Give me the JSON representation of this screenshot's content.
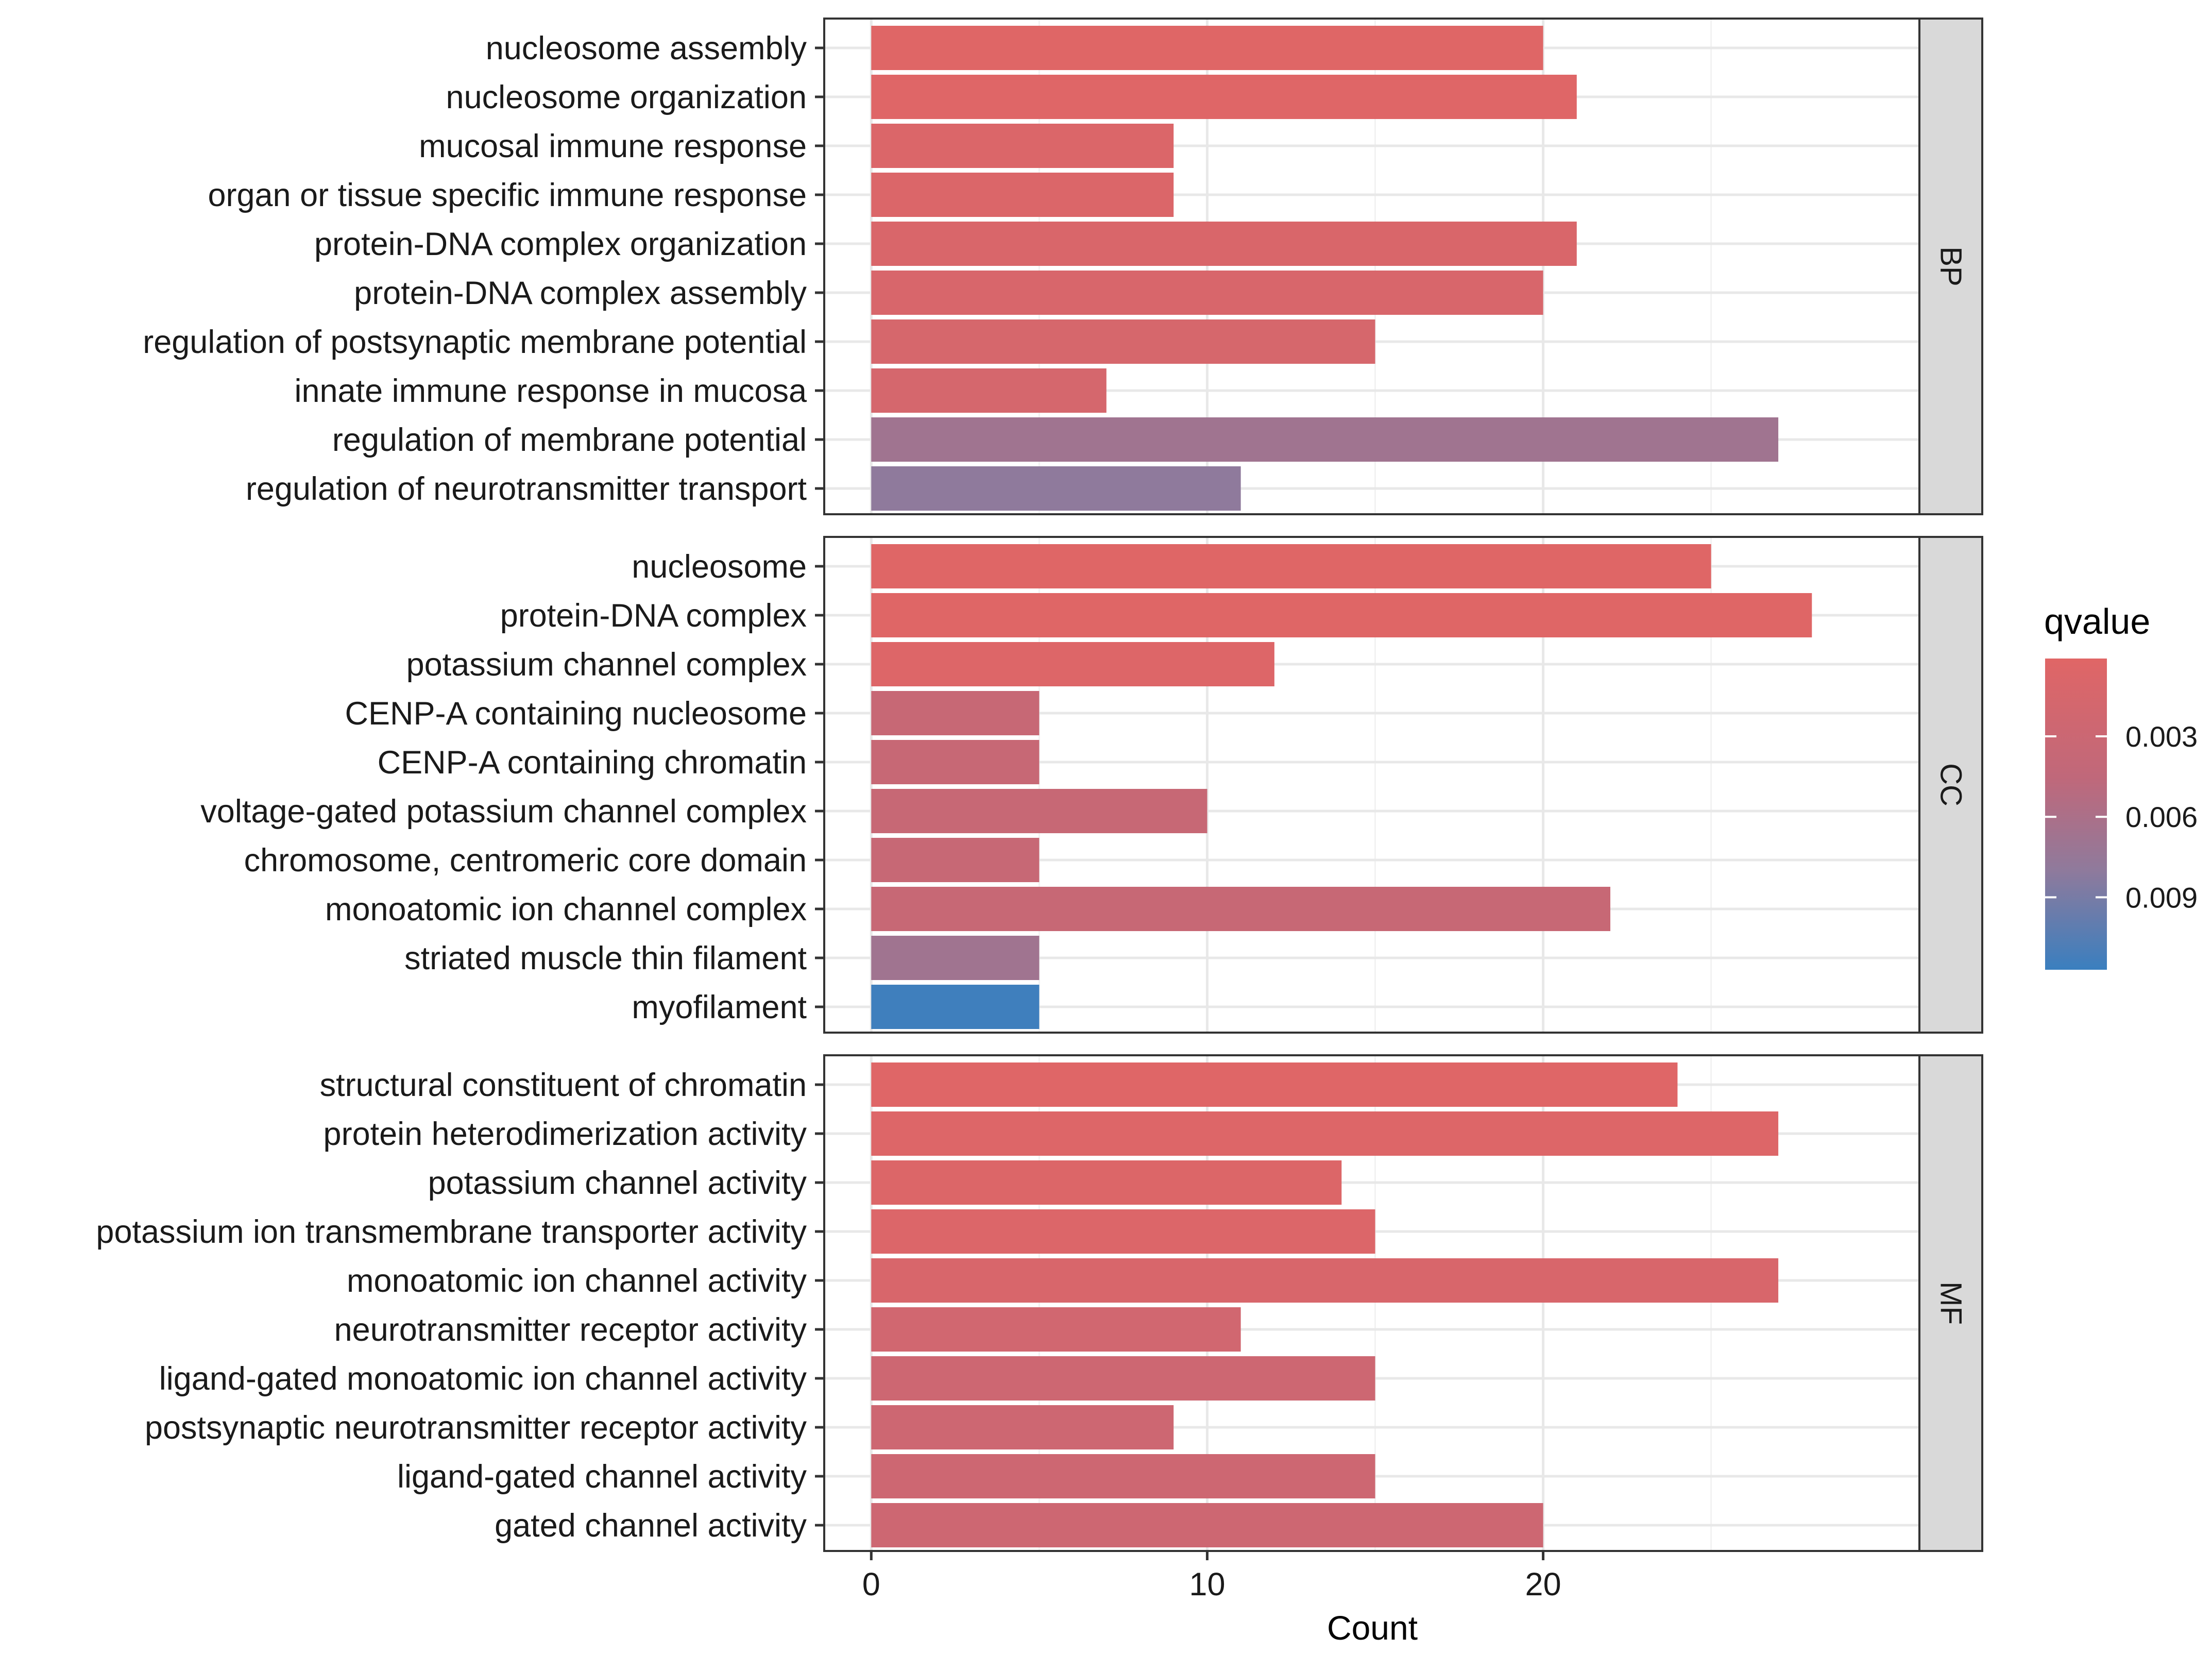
{
  "chart_data": {
    "type": "bar",
    "orientation": "horizontal",
    "xlabel": "Count",
    "xlim": [
      -1.4,
      31.2
    ],
    "xticks": [
      0,
      10,
      20
    ],
    "grid": true,
    "legend": {
      "title": "qvalue",
      "ticks": [
        0.003,
        0.006,
        0.009
      ],
      "tick_labels": [
        "0.003",
        "0.006",
        "0.009"
      ],
      "min": 0.0001,
      "max": 0.0117,
      "low_color": "#e06666",
      "high_color": "#3a7fbf",
      "position": "right"
    },
    "facets": [
      {
        "name": "BP",
        "categories": [
          "nucleosome assembly",
          "nucleosome organization",
          "mucosal immune response",
          "organ or tissue specific immune response",
          "protein-DNA complex organization",
          "protein-DNA complex assembly",
          "regulation of postsynaptic membrane potential",
          "innate immune response in mucosa",
          "regulation of membrane potential",
          "regulation of neurotransmitter transport"
        ],
        "values": [
          20,
          21,
          9,
          9,
          21,
          20,
          15,
          7,
          27,
          11
        ],
        "qvalues": [
          0.0002,
          0.0003,
          0.0008,
          0.0008,
          0.001,
          0.0012,
          0.0015,
          0.0016,
          0.0068,
          0.008
        ]
      },
      {
        "name": "CC",
        "categories": [
          "nucleosome",
          "protein-DNA complex",
          "potassium channel complex",
          "CENP-A containing nucleosome",
          "CENP-A containing chromatin",
          "voltage-gated potassium channel complex",
          "chromosome, centromeric core domain",
          "monoatomic ion channel complex",
          "striated muscle thin filament",
          "myofilament"
        ],
        "values": [
          25,
          28,
          12,
          5,
          5,
          10,
          5,
          22,
          5,
          5
        ],
        "qvalues": [
          0.0002,
          0.0002,
          0.0005,
          0.0035,
          0.0035,
          0.0035,
          0.0035,
          0.0035,
          0.0068,
          0.0115
        ]
      },
      {
        "name": "MF",
        "categories": [
          "structural constituent of chromatin",
          "protein heterodimerization activity",
          "potassium channel activity",
          "potassium ion transmembrane transporter activity",
          "monoatomic ion channel activity",
          "neurotransmitter receptor activity",
          "ligand-gated monoatomic ion channel activity",
          "postsynaptic neurotransmitter receptor activity",
          "ligand-gated channel activity",
          "gated channel activity"
        ],
        "values": [
          24,
          27,
          14,
          15,
          27,
          11,
          15,
          9,
          15,
          20
        ],
        "qvalues": [
          0.0003,
          0.0005,
          0.0006,
          0.0007,
          0.0012,
          0.0022,
          0.0027,
          0.0027,
          0.0027,
          0.0027
        ]
      }
    ]
  }
}
